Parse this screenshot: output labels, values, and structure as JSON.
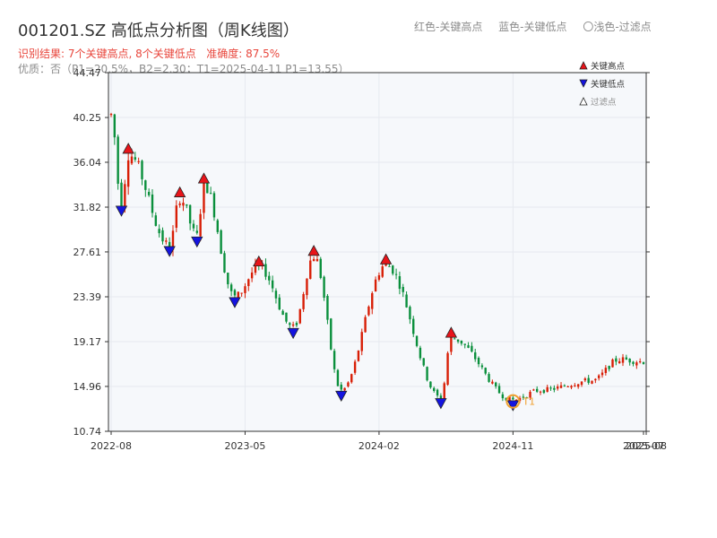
{
  "title": "001201.SZ 高低点分析图（周K线图）",
  "legend_top": {
    "red": "红色-关键高点",
    "blue": "蓝色-关键低点",
    "light": "〇浅色-过滤点"
  },
  "subtitle_result": "识别结果: 7个关键高点, 8个关键低点",
  "subtitle_accuracy": "准确度: 87.5%",
  "subtitle_quality": "优质：否（P1=20.5%，B2=2.30；T1=2025-04-11 P1=13.55）",
  "colors": {
    "up": "#d81e06",
    "down": "#0a8f3c",
    "high": "#e8141a",
    "low": "#1414e0",
    "filtered": "#f0a030",
    "grid": "#e6e9ef",
    "plot_bg": "#f6f8fb"
  },
  "marker_legend": {
    "high_label": "关键高点",
    "low_label": "关键低点",
    "filtered_label": "过滤点"
  },
  "chart_data": {
    "type": "candlestick",
    "x_ticks": [
      "2022-08",
      "2023-05",
      "2024-02",
      "2024-11",
      "2025-07",
      "2025-08"
    ],
    "y_ticks": [
      "10.74",
      "14.96",
      "19.17",
      "23.39",
      "27.61",
      "31.82",
      "36.04",
      "40.25",
      "44.47"
    ],
    "ylim": [
      10.74,
      44.47
    ],
    "weeks": 156,
    "key_points": [
      {
        "type": "low",
        "week": 3,
        "value": 32.0
      },
      {
        "type": "high",
        "week": 5,
        "value": 36.8
      },
      {
        "type": "low",
        "week": 17,
        "value": 28.2
      },
      {
        "type": "high",
        "week": 20,
        "value": 32.7
      },
      {
        "type": "low",
        "week": 25,
        "value": 29.1
      },
      {
        "type": "high",
        "week": 27,
        "value": 34.0
      },
      {
        "type": "low",
        "week": 36,
        "value": 23.4
      },
      {
        "type": "high",
        "week": 43,
        "value": 26.2
      },
      {
        "type": "low",
        "week": 53,
        "value": 20.5
      },
      {
        "type": "high",
        "week": 59,
        "value": 27.2
      },
      {
        "type": "low",
        "week": 67,
        "value": 14.6
      },
      {
        "type": "high",
        "week": 80,
        "value": 26.4
      },
      {
        "type": "low",
        "week": 96,
        "value": 13.9
      },
      {
        "type": "high",
        "week": 99,
        "value": 19.5
      },
      {
        "type": "low",
        "week": 117,
        "value": 13.7
      }
    ],
    "filtered_points": [
      {
        "week": 117,
        "value": 13.55,
        "label": "T1"
      }
    ]
  }
}
